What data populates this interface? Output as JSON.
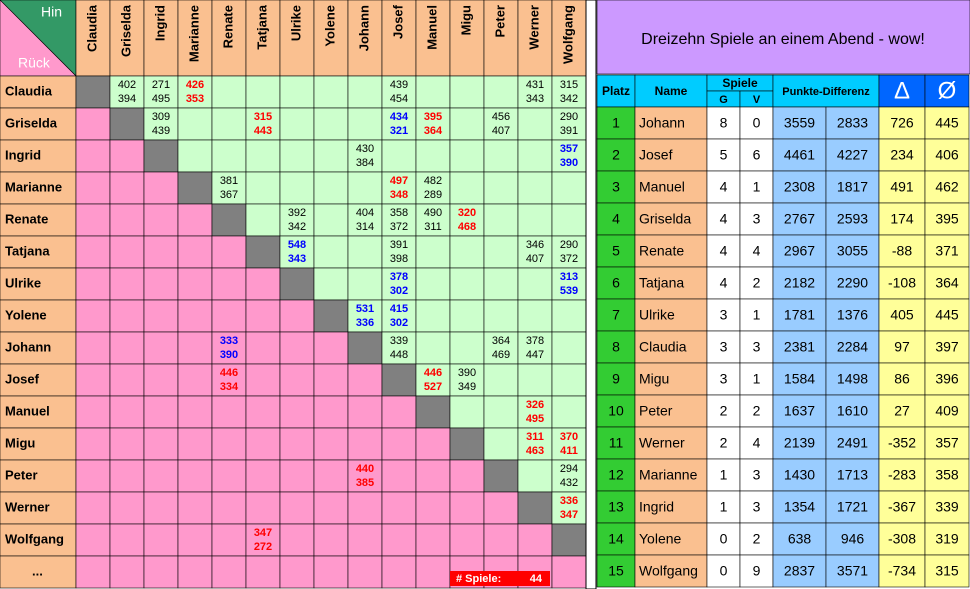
{
  "grid": {
    "corner": {
      "top": "Hin",
      "bottom": "Rück"
    },
    "players": [
      "Claudia",
      "Griselda",
      "Ingrid",
      "Marianne",
      "Renate",
      "Tatjana",
      "Ulrike",
      "Yolene",
      "Johann",
      "Josef",
      "Manuel",
      "Migu",
      "Peter",
      "Werner",
      "Wolfgang"
    ],
    "more": "...",
    "results": [
      [
        null,
        {
          "scores": [
            402,
            394
          ],
          "color": "#000000"
        },
        {
          "scores": [
            271,
            495
          ],
          "color": "#000000"
        },
        {
          "scores": [
            426,
            353
          ],
          "color": "#ff0000"
        },
        null,
        null,
        null,
        null,
        null,
        {
          "scores": [
            439,
            454
          ],
          "color": "#000000"
        },
        null,
        null,
        null,
        {
          "scores": [
            431,
            343
          ],
          "color": "#000000"
        },
        {
          "scores": [
            315,
            342
          ],
          "color": "#000000"
        }
      ],
      [
        null,
        null,
        {
          "scores": [
            309,
            439
          ],
          "color": "#000000"
        },
        null,
        null,
        {
          "scores": [
            315,
            443
          ],
          "color": "#ff0000"
        },
        null,
        null,
        null,
        {
          "scores": [
            434,
            321
          ],
          "color": "#0000ff"
        },
        {
          "scores": [
            395,
            364
          ],
          "color": "#ff0000"
        },
        null,
        {
          "scores": [
            456,
            407
          ],
          "color": "#000000"
        },
        null,
        {
          "scores": [
            290,
            391
          ],
          "color": "#000000"
        }
      ],
      [
        null,
        null,
        null,
        null,
        null,
        null,
        null,
        null,
        {
          "scores": [
            430,
            384
          ],
          "color": "#000000"
        },
        null,
        null,
        null,
        null,
        null,
        {
          "scores": [
            357,
            390
          ],
          "color": "#0000ff"
        }
      ],
      [
        null,
        null,
        null,
        null,
        {
          "scores": [
            381,
            367
          ],
          "color": "#000000"
        },
        null,
        null,
        null,
        null,
        {
          "scores": [
            497,
            348
          ],
          "color": "#ff0000"
        },
        {
          "scores": [
            482,
            289
          ],
          "color": "#000000"
        },
        null,
        null,
        null,
        null
      ],
      [
        null,
        null,
        null,
        null,
        null,
        null,
        {
          "scores": [
            392,
            342
          ],
          "color": "#000000"
        },
        null,
        {
          "scores": [
            404,
            314
          ],
          "color": "#000000"
        },
        {
          "scores": [
            358,
            372
          ],
          "color": "#000000"
        },
        {
          "scores": [
            490,
            311
          ],
          "color": "#000000"
        },
        {
          "scores": [
            320,
            468
          ],
          "color": "#ff0000"
        },
        null,
        null,
        null
      ],
      [
        null,
        null,
        null,
        null,
        null,
        null,
        {
          "scores": [
            548,
            343
          ],
          "color": "#0000ff"
        },
        null,
        null,
        {
          "scores": [
            391,
            398
          ],
          "color": "#000000"
        },
        null,
        null,
        null,
        {
          "scores": [
            346,
            407
          ],
          "color": "#000000"
        },
        {
          "scores": [
            290,
            372
          ],
          "color": "#000000"
        }
      ],
      [
        null,
        null,
        null,
        null,
        null,
        null,
        null,
        null,
        null,
        {
          "scores": [
            378,
            302
          ],
          "color": "#0000ff"
        },
        null,
        null,
        null,
        null,
        {
          "scores": [
            313,
            539
          ],
          "color": "#0000ff"
        }
      ],
      [
        null,
        null,
        null,
        null,
        null,
        null,
        null,
        null,
        {
          "scores": [
            531,
            336
          ],
          "color": "#0000ff"
        },
        {
          "scores": [
            415,
            302
          ],
          "color": "#0000ff"
        },
        null,
        null,
        null,
        null,
        null
      ],
      [
        null,
        null,
        null,
        null,
        {
          "scores": [
            333,
            390
          ],
          "color": "#0000ff"
        },
        null,
        null,
        null,
        null,
        {
          "scores": [
            339,
            448
          ],
          "color": "#000000"
        },
        null,
        null,
        {
          "scores": [
            364,
            469
          ],
          "color": "#000000"
        },
        {
          "scores": [
            378,
            447
          ],
          "color": "#000000"
        },
        null
      ],
      [
        null,
        null,
        null,
        null,
        {
          "scores": [
            446,
            334
          ],
          "color": "#ff0000"
        },
        null,
        null,
        null,
        null,
        null,
        {
          "scores": [
            446,
            527
          ],
          "color": "#ff0000"
        },
        {
          "scores": [
            390,
            349
          ],
          "color": "#000000"
        },
        null,
        null,
        null
      ],
      [
        null,
        null,
        null,
        null,
        null,
        null,
        null,
        null,
        null,
        null,
        null,
        null,
        null,
        {
          "scores": [
            326,
            495
          ],
          "color": "#ff0000"
        },
        null
      ],
      [
        null,
        null,
        null,
        null,
        null,
        null,
        null,
        null,
        null,
        null,
        null,
        null,
        null,
        {
          "scores": [
            311,
            463
          ],
          "color": "#ff0000"
        },
        {
          "scores": [
            370,
            411
          ],
          "color": "#ff0000"
        }
      ],
      [
        null,
        null,
        null,
        null,
        null,
        null,
        null,
        null,
        {
          "scores": [
            440,
            385
          ],
          "color": "#ff0000"
        },
        null,
        null,
        null,
        null,
        null,
        {
          "scores": [
            294,
            432
          ],
          "color": "#000000"
        }
      ],
      [
        null,
        null,
        null,
        null,
        null,
        null,
        null,
        null,
        null,
        null,
        null,
        null,
        null,
        null,
        {
          "scores": [
            336,
            347
          ],
          "color": "#ff0000"
        }
      ],
      [
        null,
        null,
        null,
        null,
        null,
        {
          "scores": [
            347,
            272
          ],
          "color": "#ff0000"
        },
        null,
        null,
        null,
        null,
        null,
        null,
        null,
        null,
        null
      ]
    ],
    "total": {
      "label": "# Spiele:",
      "value": 44
    }
  },
  "standings": {
    "title": "Dreizehn Spiele an einem Abend - wow!",
    "headers": {
      "rank": "Platz",
      "name": "Name",
      "games": "Spiele",
      "won": "G",
      "lost": "V",
      "points": "Punkte-Differenz",
      "delta": "Δ",
      "avg": "Ø"
    },
    "rows": [
      [
        1,
        "Johann",
        8,
        0,
        3559,
        2833,
        726,
        445
      ],
      [
        2,
        "Josef",
        5,
        6,
        4461,
        4227,
        234,
        406
      ],
      [
        3,
        "Manuel",
        4,
        1,
        2308,
        1817,
        491,
        462
      ],
      [
        4,
        "Griselda",
        4,
        3,
        2767,
        2593,
        174,
        395
      ],
      [
        5,
        "Renate",
        4,
        4,
        2967,
        3055,
        -88,
        371
      ],
      [
        6,
        "Tatjana",
        4,
        2,
        2182,
        2290,
        -108,
        364
      ],
      [
        7,
        "Ulrike",
        3,
        1,
        1781,
        1376,
        405,
        445
      ],
      [
        8,
        "Claudia",
        3,
        3,
        2381,
        2284,
        97,
        397
      ],
      [
        9,
        "Migu",
        3,
        1,
        1584,
        1498,
        86,
        396
      ],
      [
        10,
        "Peter",
        2,
        2,
        1637,
        1610,
        27,
        409
      ],
      [
        11,
        "Werner",
        2,
        4,
        2139,
        2491,
        -352,
        357
      ],
      [
        12,
        "Marianne",
        1,
        3,
        1430,
        1713,
        -283,
        358
      ],
      [
        13,
        "Ingrid",
        1,
        3,
        1354,
        1721,
        -367,
        339
      ],
      [
        14,
        "Yolene",
        0,
        2,
        638,
        946,
        -308,
        319
      ],
      [
        15,
        "Wolfgang",
        0,
        9,
        2837,
        3571,
        -734,
        315
      ]
    ]
  }
}
